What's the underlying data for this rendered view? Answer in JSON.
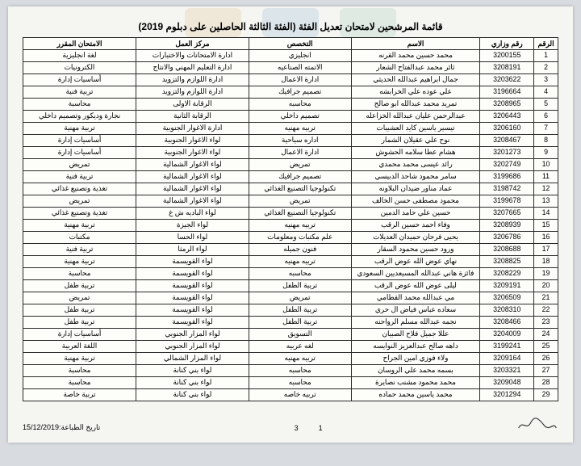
{
  "title": "قائمة المرشحين لامتحان تعديل الفئة (الفئة الثالثة الحاصلين على دبلوم 2019)",
  "headers": {
    "idx": "الرقم",
    "code": "رقم وزاري",
    "name": "الاسم",
    "spec": "التخصص",
    "center": "مركز العمل",
    "exam": "الامتحان المقرر"
  },
  "rows": [
    {
      "idx": "1",
      "code": "3200155",
      "name": "محمد حسين محمد القرنه",
      "spec": "انجليزي",
      "center": "ادارة الامتحانات والاختبارات",
      "exam": "لغة انجليزية"
    },
    {
      "idx": "2",
      "code": "3208191",
      "name": "ثائر محمد عبدالفتاح الشعار",
      "spec": "الاتمته الصناعيه",
      "center": "ادارة التعليم المهني والانتاج",
      "exam": "الكترونيات"
    },
    {
      "idx": "3",
      "code": "3203622",
      "name": "جمال ابراهيم عبدالله الحديثي",
      "spec": "ادارة الاعمال",
      "center": "ادارة اللوازم والتزويد",
      "exam": "أساسيات إدارة"
    },
    {
      "idx": "4",
      "code": "3196664",
      "name": "علي عوده علي الخرابشه",
      "spec": "تصميم جرافيك",
      "center": "ادارة اللوازم والتزويد",
      "exam": "تربية فنية"
    },
    {
      "idx": "5",
      "code": "3208965",
      "name": "تمريد محمد عبدالله ابو صالح",
      "spec": "محاسبه",
      "center": "الرقابة الاولى",
      "exam": "محاسبة"
    },
    {
      "idx": "6",
      "code": "3206443",
      "name": "عبدالرحمن عليان عبدالله الخزاعله",
      "spec": "تصميم داخلي",
      "center": "الرقابة الثانية",
      "exam": "نجارة وديكور وتصميم داخلي"
    },
    {
      "idx": "7",
      "code": "3206160",
      "name": "تيسير ياسين كايد العشيبات",
      "spec": "تربيه مهنيه",
      "center": "ادارة الاغوار الجنوبية",
      "exam": "تربية مهنية"
    },
    {
      "idx": "8",
      "code": "3208467",
      "name": "نوح علي عقيلان الشمار",
      "spec": "اداره سياحية",
      "center": "لواء الاغوار الجنوبية",
      "exam": "أساسيات إدارة"
    },
    {
      "idx": "9",
      "code": "3201273",
      "name": "هشام عطا سلامه الحشوش",
      "spec": "ادارة الاعمال",
      "center": "لواء الاغوار الجنوبية",
      "exam": "أساسيات إدارة"
    },
    {
      "idx": "10",
      "code": "3202749",
      "name": "رائد عيسى محمد محمدي",
      "spec": "تمريض",
      "center": "لواء الاغوار الشمالية",
      "exam": "تمريض"
    },
    {
      "idx": "11",
      "code": "3199686",
      "name": "سامر محمود شاحذ الدبيسي",
      "spec": "تصميم جرافيك",
      "center": "لواء الاغوار الشمالية",
      "exam": "تربية فنية"
    },
    {
      "idx": "12",
      "code": "3198742",
      "name": "عماد مناور ضيدان البلاونه",
      "spec": "تكنولوجيا التصنيع الغذائي",
      "center": "لواء الاغوار الشمالية",
      "exam": "تغذية وتصنيع غذائي"
    },
    {
      "idx": "13",
      "code": "3199678",
      "name": "محمود مصطفى حسن الخالف",
      "spec": "تمريض",
      "center": "لواء الاغوار الشمالية",
      "exam": "تمريض"
    },
    {
      "idx": "14",
      "code": "3207665",
      "name": "حسين علي حامد الدمين",
      "spec": "تكنولوجيا التصنيع الغذائي",
      "center": "لواء الباديه ش غ",
      "exam": "تغذية وتصنيع غذائي"
    },
    {
      "idx": "15",
      "code": "3208939",
      "name": "وفاء احمد حسين الرقب",
      "spec": "تربيه مهنيه",
      "center": "لواء الجيزة",
      "exam": "تربية مهنية"
    },
    {
      "idx": "16",
      "code": "3206786",
      "name": "يحيى فرحان حميدان العديلات",
      "spec": "علم مكتبات ومعلومات",
      "center": "لواء الحسا",
      "exam": "مكتبات"
    },
    {
      "idx": "17",
      "code": "3208688",
      "name": "ورود حسين محمود السقار",
      "spec": "فنون جميله",
      "center": "لواء الرمثا",
      "exam": "تربية فنية"
    },
    {
      "idx": "18",
      "code": "3208825",
      "name": "نهاي عوض الله عوض الرقب",
      "spec": "تربيه مهنيه",
      "center": "لواء القويسمة",
      "exam": "تربية مهنية"
    },
    {
      "idx": "19",
      "code": "3208229",
      "name": "فائزة هاني عبدالله المسيعديين السعودي",
      "spec": "محاسبه",
      "center": "لواء القويسمة",
      "exam": "محاسبة"
    },
    {
      "idx": "20",
      "code": "3209191",
      "name": "ليلى عوض الله عوض الرقب",
      "spec": "تربية الطفل",
      "center": "لواء القويسمة",
      "exam": "تربية طفل"
    },
    {
      "idx": "21",
      "code": "3206509",
      "name": "مي عبدالله محمد القطامي",
      "spec": "تمريض",
      "center": "لواء القويسمة",
      "exam": "تمريض"
    },
    {
      "idx": "22",
      "code": "3208310",
      "name": "سعاده عباس فياض ال حري",
      "spec": "تربية الطفل",
      "center": "لواء القويسمة",
      "exam": "تربية طفل"
    },
    {
      "idx": "23",
      "code": "3208466",
      "name": "نجمه عبدالله مسلم الرواحنه",
      "spec": "تربية الطفل",
      "center": "لواء القويسمة",
      "exam": "تربية طفل"
    },
    {
      "idx": "24",
      "code": "3204009",
      "name": "عللا جميل فلاح الصبيان",
      "spec": "التسويق",
      "center": "لواء المزار الجنوبي",
      "exam": "أساسيات إدارة"
    },
    {
      "idx": "25",
      "code": "3199241",
      "name": "داهه صالح عبدالعزيز النوايسه",
      "spec": "لغه عربيه",
      "center": "لواء المزار الجنوبي",
      "exam": "اللغة العربية"
    },
    {
      "idx": "26",
      "code": "3209164",
      "name": "ولاء فوزي امين الجراح",
      "spec": "تربيه مهنيه",
      "center": "لواء المزار الشمالي",
      "exam": "تربية مهنية"
    },
    {
      "idx": "27",
      "code": "3203321",
      "name": "بسمه محمد علي الروسان",
      "spec": "محاسبه",
      "center": "لواء بني كنانة",
      "exam": "محاسبة"
    },
    {
      "idx": "28",
      "code": "3209048",
      "name": "محمد محمود مشنب نصايرة",
      "spec": "محاسبه",
      "center": "لواء بني كنانة",
      "exam": "محاسبة"
    },
    {
      "idx": "29",
      "code": "3201294",
      "name": "محمد ياسين محمد حماده",
      "spec": "تربيه خاصه",
      "center": "لواء بني كنانة",
      "exam": "تربية خاصة"
    }
  ],
  "footer": {
    "page_current": "1",
    "page_total": "3",
    "print_label": "تاريخ الطباعة:",
    "print_date": "15/12/2019"
  },
  "colors": {
    "page_bg": "#f5f5f2",
    "outer_bg": "#d8dce0",
    "border": "#2a2a2a"
  }
}
